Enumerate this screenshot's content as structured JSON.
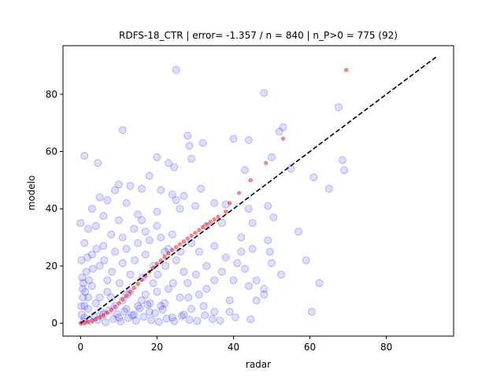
{
  "chart_data": {
    "type": "scatter",
    "title": "RDFS-18_CTR | error= -1.357 / n = 840 | n_P>0 = 775 (92)",
    "xlabel": "radar",
    "ylabel": "modelo",
    "xlim": [
      -4.6,
      97.6
    ],
    "ylim": [
      -4.5,
      97.0
    ],
    "x_ticks": [
      0,
      20,
      40,
      60,
      80
    ],
    "y_ticks": [
      0,
      20,
      40,
      60,
      80
    ],
    "grid": false,
    "legend": "none",
    "colors": {
      "observations": "#0000ff",
      "quantiles": "#ff0000",
      "identity_line": "#000000",
      "axes": "#000000"
    },
    "series": [
      {
        "style": "blue translucent circles",
        "points": [
          [
            25,
            88.5
          ],
          [
            48,
            80.5
          ],
          [
            67.5,
            75.5
          ],
          [
            11,
            67.5
          ],
          [
            53,
            68.5
          ],
          [
            52,
            67
          ],
          [
            28,
            65.5
          ],
          [
            40,
            64.5
          ],
          [
            32,
            63
          ],
          [
            44,
            64
          ],
          [
            28.5,
            62
          ],
          [
            1,
            58.5
          ],
          [
            20,
            58
          ],
          [
            29,
            57.5
          ],
          [
            50,
            58
          ],
          [
            68.5,
            57
          ],
          [
            4.5,
            56
          ],
          [
            23,
            56
          ],
          [
            24.5,
            54.5
          ],
          [
            43,
            53.5
          ],
          [
            55,
            54
          ],
          [
            69,
            53.5
          ],
          [
            61,
            51
          ],
          [
            18,
            51.5
          ],
          [
            65,
            47
          ],
          [
            10,
            48.5
          ],
          [
            13,
            48
          ],
          [
            31.5,
            47
          ],
          [
            9,
            46.5
          ],
          [
            21,
            46.5
          ],
          [
            16,
            47
          ],
          [
            24,
            45
          ],
          [
            27,
            44.5
          ],
          [
            25,
            43
          ],
          [
            35,
            42
          ],
          [
            7,
            43
          ],
          [
            12,
            42
          ],
          [
            30,
            41
          ],
          [
            38,
            41.5
          ],
          [
            44,
            40
          ],
          [
            49,
            41
          ],
          [
            6,
            37.5
          ],
          [
            15,
            38
          ],
          [
            20,
            39
          ],
          [
            26,
            40
          ],
          [
            50.5,
            37
          ],
          [
            45,
            35
          ],
          [
            57,
            32
          ],
          [
            0,
            35
          ],
          [
            2,
            33
          ],
          [
            4,
            34
          ],
          [
            11,
            30
          ],
          [
            17,
            32
          ],
          [
            33,
            34
          ],
          [
            37,
            35
          ],
          [
            42,
            30
          ],
          [
            49,
            29
          ],
          [
            52.5,
            17
          ],
          [
            48,
            12
          ],
          [
            62.5,
            14
          ],
          [
            59,
            22
          ],
          [
            60.5,
            4
          ],
          [
            48,
            10
          ],
          [
            46,
            15
          ],
          [
            50,
            21
          ],
          [
            49.5,
            25
          ],
          [
            45,
            26
          ],
          [
            43,
            19
          ],
          [
            41,
            21
          ],
          [
            38,
            23
          ],
          [
            35,
            15
          ],
          [
            39,
            8
          ],
          [
            35,
            4
          ],
          [
            31,
            10
          ],
          [
            29,
            5
          ],
          [
            27,
            3
          ],
          [
            24,
            2
          ],
          [
            22,
            7
          ],
          [
            20,
            11
          ],
          [
            18,
            4
          ],
          [
            16,
            8
          ],
          [
            14,
            3
          ],
          [
            12,
            5
          ],
          [
            10,
            2
          ],
          [
            8,
            9
          ],
          [
            6,
            3
          ],
          [
            4,
            7
          ],
          [
            2,
            5
          ],
          [
            1,
            2
          ],
          [
            0.5,
            12
          ],
          [
            1.5,
            18
          ],
          [
            3,
            24
          ],
          [
            5,
            20
          ],
          [
            7,
            15
          ],
          [
            9,
            25
          ],
          [
            11,
            21
          ],
          [
            13,
            17
          ],
          [
            15,
            28
          ],
          [
            17,
            24
          ],
          [
            19,
            20
          ],
          [
            21,
            30
          ],
          [
            23,
            26
          ],
          [
            25,
            22
          ],
          [
            27,
            18
          ],
          [
            29,
            28
          ],
          [
            31,
            25
          ],
          [
            33,
            20
          ],
          [
            35,
            27
          ],
          [
            37,
            18
          ],
          [
            40,
            15
          ],
          [
            42,
            25
          ],
          [
            44,
            13
          ],
          [
            46,
            8
          ],
          [
            39,
            4
          ],
          [
            33,
            12
          ],
          [
            28,
            14
          ],
          [
            26,
            9
          ],
          [
            23,
            12
          ],
          [
            21,
            6
          ],
          [
            19,
            14
          ],
          [
            17,
            10
          ],
          [
            15,
            6
          ],
          [
            13,
            11
          ],
          [
            11,
            8
          ],
          [
            9,
            6
          ],
          [
            7,
            11
          ],
          [
            5,
            9
          ],
          [
            3,
            13
          ],
          [
            2,
            9
          ],
          [
            1,
            6
          ],
          [
            0.3,
            3
          ],
          [
            0.8,
            0.5
          ],
          [
            2.5,
            0.8
          ],
          [
            4.5,
            1.2
          ],
          [
            6.5,
            0.4
          ],
          [
            8.5,
            1.5
          ],
          [
            10.5,
            0.6
          ],
          [
            12.5,
            1.8
          ],
          [
            14.5,
            0.9
          ],
          [
            16.5,
            2.2
          ],
          [
            18.5,
            1.1
          ],
          [
            20.5,
            0.5
          ],
          [
            22.5,
            1.6
          ],
          [
            24.5,
            0.7
          ],
          [
            26.5,
            2.5
          ],
          [
            28.5,
            1.2
          ],
          [
            30.5,
            0.8
          ],
          [
            32.5,
            2.8
          ],
          [
            34.5,
            1.5
          ],
          [
            36.5,
            0.9
          ],
          [
            40.5,
            2.1
          ],
          [
            44.5,
            1.4
          ],
          [
            3.5,
            2.6
          ],
          [
            5.5,
            3.8
          ],
          [
            7.5,
            4.5
          ],
          [
            9.5,
            3.2
          ],
          [
            11.5,
            4.1
          ],
          [
            13.5,
            2.8
          ],
          [
            15.5,
            5.2
          ],
          [
            17.5,
            6.5
          ],
          [
            19.5,
            3.6
          ],
          [
            21.5,
            4.8
          ],
          [
            6,
            27
          ],
          [
            8,
            31
          ],
          [
            10,
            36
          ],
          [
            12,
            26
          ],
          [
            14,
            33
          ],
          [
            16,
            36
          ],
          [
            18,
            29
          ],
          [
            20,
            34
          ],
          [
            22,
            25
          ],
          [
            24,
            31
          ],
          [
            1,
            28
          ],
          [
            3,
            40
          ],
          [
            5,
            44
          ],
          [
            0.2,
            22
          ],
          [
            0.4,
            16
          ],
          [
            0.6,
            9
          ],
          [
            0.2,
            6
          ],
          [
            0.7,
            14
          ],
          [
            1.2,
            11
          ],
          [
            1.8,
            23
          ],
          [
            2.2,
            15
          ],
          [
            3.2,
            19
          ],
          [
            4.2,
            26
          ],
          [
            6.2,
            22
          ],
          [
            8.2,
            18
          ],
          [
            10.2,
            14
          ],
          [
            12.2,
            10
          ],
          [
            14.2,
            22
          ],
          [
            16.2,
            16
          ],
          [
            18.2,
            7
          ],
          [
            20.2,
            17
          ],
          [
            22.2,
            20
          ],
          [
            24.2,
            14
          ],
          [
            26.2,
            25
          ],
          [
            28.2,
            9
          ],
          [
            30.2,
            17
          ],
          [
            32.2,
            6
          ]
        ]
      },
      {
        "style": "red small dots (quantiles)",
        "points": [
          [
            0,
            0
          ],
          [
            1,
            0.2
          ],
          [
            2,
            0.5
          ],
          [
            3,
            0.9
          ],
          [
            4,
            1.4
          ],
          [
            5,
            2
          ],
          [
            6,
            2.8
          ],
          [
            7,
            3.7
          ],
          [
            8,
            4.7
          ],
          [
            9,
            5.8
          ],
          [
            10,
            7
          ],
          [
            11,
            8.3
          ],
          [
            12,
            9.6
          ],
          [
            13,
            11
          ],
          [
            14,
            12.4
          ],
          [
            15,
            13.8
          ],
          [
            16,
            15.2
          ],
          [
            17,
            16.6
          ],
          [
            18,
            18
          ],
          [
            19,
            19.4
          ],
          [
            20,
            20.8
          ],
          [
            21,
            22
          ],
          [
            22,
            23.2
          ],
          [
            23,
            24.4
          ],
          [
            24,
            25.6
          ],
          [
            25,
            26.6
          ],
          [
            26,
            27.6
          ],
          [
            27,
            28.6
          ],
          [
            28,
            29.6
          ],
          [
            29,
            30.6
          ],
          [
            30,
            31.6
          ],
          [
            31,
            32.6
          ],
          [
            32,
            33.6
          ],
          [
            33,
            34.5
          ],
          [
            34,
            35.4
          ],
          [
            35,
            36.3
          ],
          [
            36,
            37.2
          ],
          [
            38,
            39
          ],
          [
            39,
            42
          ],
          [
            41.5,
            45.5
          ],
          [
            44.5,
            50
          ],
          [
            48.5,
            56
          ],
          [
            53,
            64.5
          ],
          [
            69.5,
            88.5
          ]
        ]
      }
    ],
    "identity_line": {
      "from": [
        0,
        0
      ],
      "to": [
        93,
        93
      ],
      "style": "dashed"
    }
  }
}
